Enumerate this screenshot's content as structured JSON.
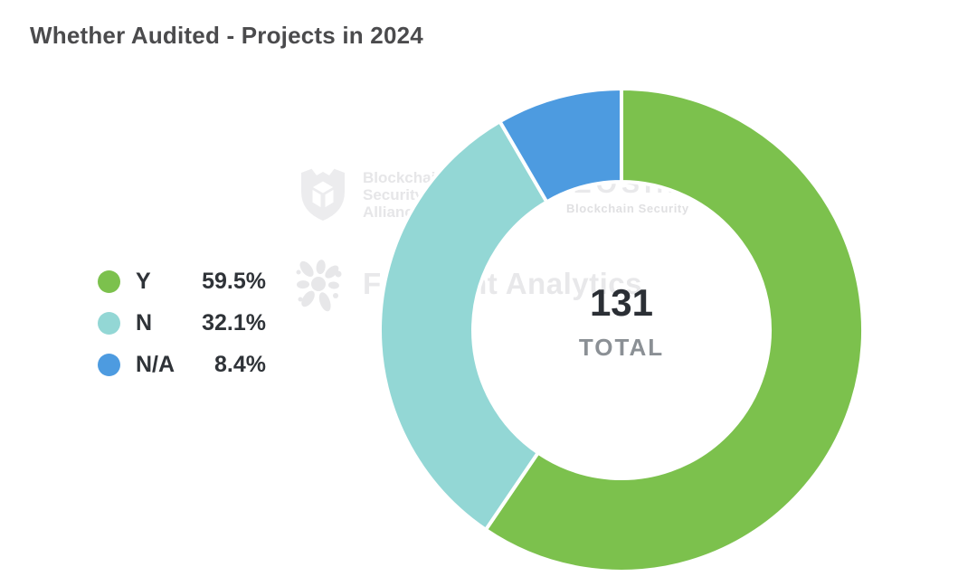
{
  "title": "Whether Audited - Projects in 2024",
  "chart_data": {
    "type": "pie",
    "subtype": "donut",
    "title": "Whether Audited - Projects in 2024",
    "categories": [
      "Y",
      "N",
      "N/A"
    ],
    "values": [
      59.5,
      32.1,
      8.4
    ],
    "unit": "%",
    "colors": [
      "#7cc14d",
      "#93d7d5",
      "#4d9be0"
    ],
    "start_angle_deg": 0,
    "direction": "clockwise",
    "inner_radius_ratio": 0.61,
    "center_value": "131",
    "center_label": "TOTAL",
    "legend_position": "left",
    "background": "#ffffff"
  },
  "legend": {
    "items": [
      {
        "label": "Y",
        "value": "59.5%",
        "color": "#7cc14d"
      },
      {
        "label": "N",
        "value": "32.1%",
        "color": "#93d7d5"
      },
      {
        "label": "N/A",
        "value": "8.4%",
        "color": "#4d9be0"
      }
    ]
  },
  "center": {
    "value": "131",
    "label": "TOTAL"
  },
  "watermarks": {
    "bsa": {
      "line1": "Blockchain",
      "line2": "Security",
      "line3": "Alliance"
    },
    "beosin": {
      "name": "BEOSIN",
      "subtitle": "Blockchain Security"
    },
    "footprint": {
      "text": "Footprint Analytics"
    }
  }
}
